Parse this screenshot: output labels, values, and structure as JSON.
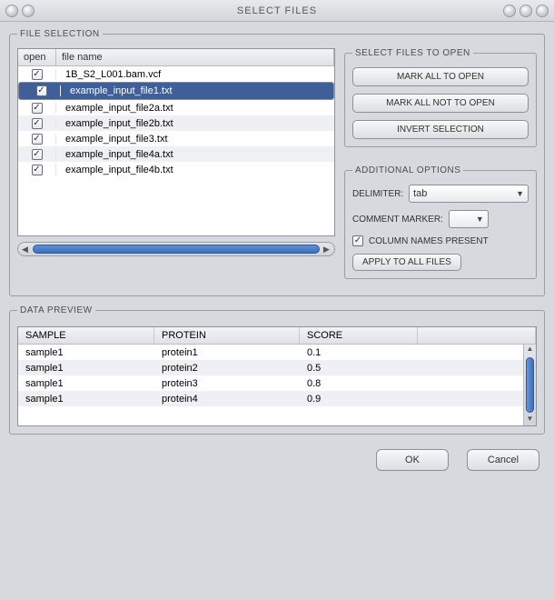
{
  "window": {
    "title": "SELECT FILES"
  },
  "file_selection": {
    "legend": "FILE SELECTION",
    "columns": {
      "open": "open",
      "filename": "file name"
    },
    "rows": [
      {
        "open": true,
        "name": "1B_S2_L001.bam.vcf",
        "selected": false
      },
      {
        "open": true,
        "name": "example_input_file1.txt",
        "selected": true
      },
      {
        "open": true,
        "name": "example_input_file2a.txt",
        "selected": false
      },
      {
        "open": true,
        "name": "example_input_file2b.txt",
        "selected": false
      },
      {
        "open": true,
        "name": "example_input_file3.txt",
        "selected": false
      },
      {
        "open": true,
        "name": "example_input_file4a.txt",
        "selected": false
      },
      {
        "open": true,
        "name": "example_input_file4b.txt",
        "selected": false
      }
    ]
  },
  "select_panel": {
    "legend": "SELECT FILES TO OPEN",
    "mark_all_open": "MARK ALL TO OPEN",
    "mark_all_not_open": "MARK ALL NOT TO OPEN",
    "invert": "INVERT SELECTION"
  },
  "options_panel": {
    "legend": "ADDITIONAL OPTIONS",
    "delimiter_label": "DELIMITER:",
    "delimiter_value": "tab",
    "comment_label": "COMMENT MARKER:",
    "comment_value": "",
    "colnames_label": "COLUMN NAMES PRESENT",
    "colnames_checked": true,
    "apply_btn": "APPLY TO ALL FILES"
  },
  "preview": {
    "legend": "DATA PREVIEW",
    "columns": [
      "SAMPLE",
      "PROTEIN",
      "SCORE"
    ],
    "rows": [
      [
        "sample1",
        "protein1",
        "0.1"
      ],
      [
        "sample1",
        "protein2",
        "0.5"
      ],
      [
        "sample1",
        "protein3",
        "0.8"
      ],
      [
        "sample1",
        "protein4",
        "0.9"
      ]
    ]
  },
  "footer": {
    "ok": "OK",
    "cancel": "Cancel"
  },
  "colors": {
    "selection_bg": "#3e5f9a",
    "panel_bg": "#d6d9de",
    "border": "#9a9da5"
  }
}
